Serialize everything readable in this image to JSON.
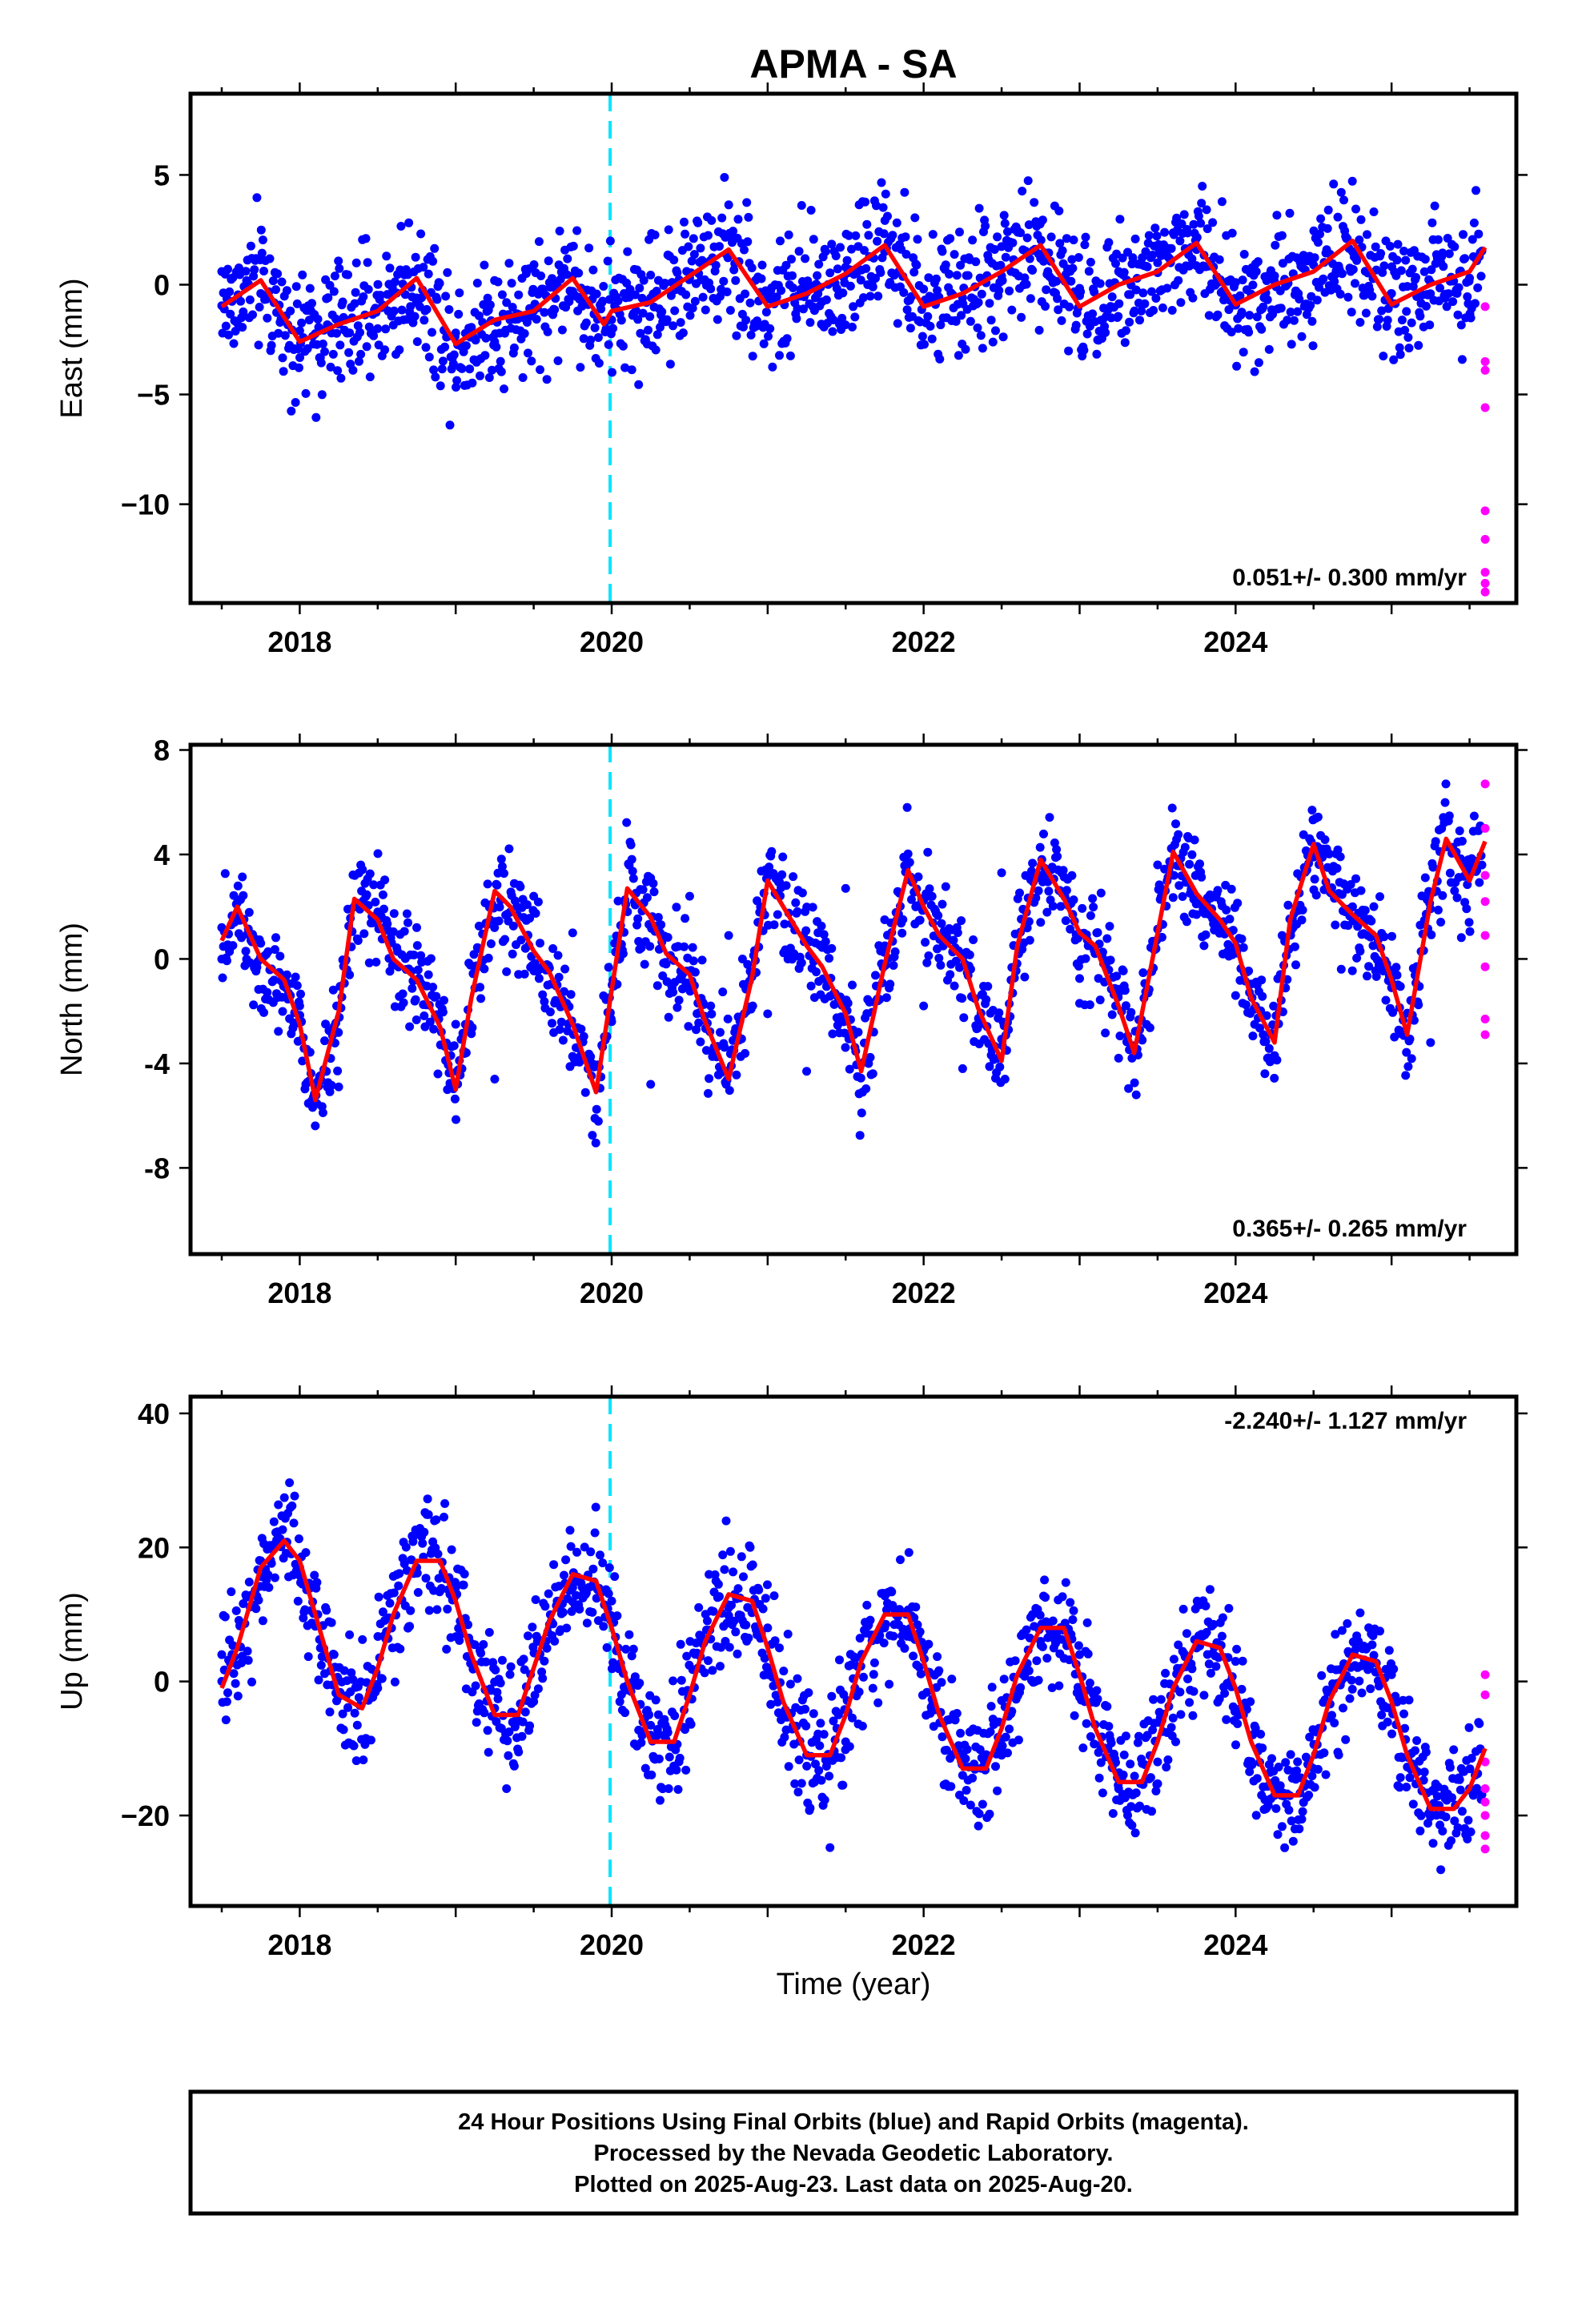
{
  "title": "APMA - SA",
  "xlabel": "Time (year)",
  "x_tick_labels": [
    "2018",
    "2020",
    "2022",
    "2024"
  ],
  "footer": {
    "line1": "24 Hour Positions Using Final Orbits (blue) and Rapid Orbits (magenta).",
    "line2": "Processed by the Nevada Geodetic Laboratory.",
    "line3": "Plotted on 2025-Aug-23. Last data on 2025-Aug-20."
  },
  "colors": {
    "final": "#0000ff",
    "rapid": "#ff00ff",
    "model": "#ff0000",
    "event": "#00e5ff",
    "frame": "#000000"
  },
  "chart_data": [
    {
      "type": "scatter",
      "component": "East",
      "ylabel": "East (mm)",
      "rate_label": "0.051+/- 0.300 mm/yr",
      "rate_position": "bottom-right",
      "xlim": [
        2017.3,
        2025.8
      ],
      "ylim": [
        -14.5,
        8.7
      ],
      "yticks": [
        5,
        0,
        -5,
        -10
      ],
      "ytick_labels": [
        "5",
        "0",
        "−5",
        "−10"
      ],
      "event_x": 2019.99,
      "grid": false,
      "final_orbits_x": [
        2017.5,
        2017.75,
        2018.0,
        2018.25,
        2018.5,
        2018.75,
        2019.0,
        2019.25,
        2019.5,
        2019.75,
        2020.0,
        2020.25,
        2020.5,
        2020.75,
        2021.0,
        2021.25,
        2021.5,
        2021.75,
        2022.0,
        2022.25,
        2022.5,
        2022.75,
        2023.0,
        2023.25,
        2023.5,
        2023.75,
        2024.0,
        2024.25,
        2024.5,
        2024.75,
        2025.0,
        2025.25,
        2025.5
      ],
      "final_orbits_y": [
        0.6,
        -0.4,
        -2.1,
        -1.8,
        -2.0,
        -0.6,
        -2.2,
        -2.6,
        -1.2,
        -0.3,
        -1.6,
        -0.6,
        0.3,
        1.4,
        -0.5,
        0.1,
        0.8,
        1.5,
        -0.2,
        -0.6,
        0.4,
        1.2,
        -0.5,
        0.6,
        1.0,
        1.6,
        0.1,
        0.4,
        0.9,
        1.5,
        -0.4,
        0.1,
        0.3
      ],
      "rapid_orbits_x": [
        2025.6,
        2025.6,
        2025.6,
        2025.6,
        2025.6,
        2025.6,
        2025.6,
        2025.6,
        2025.6
      ],
      "rapid_orbits_y": [
        -1.0,
        -3.5,
        -3.9,
        -5.6,
        -10.3,
        -11.6,
        -13.1,
        -13.6,
        -14.0
      ],
      "model_x": [
        2017.5,
        2017.75,
        2018.0,
        2018.25,
        2018.5,
        2018.75,
        2019.0,
        2019.25,
        2019.5,
        2019.75,
        2019.95,
        2020.0,
        2020.25,
        2020.5,
        2020.75,
        2021.0,
        2021.25,
        2021.5,
        2021.75,
        2022.0,
        2022.25,
        2022.5,
        2022.75,
        2023.0,
        2023.25,
        2023.5,
        2023.75,
        2024.0,
        2024.25,
        2024.5,
        2024.75,
        2025.0,
        2025.25,
        2025.5,
        2025.6
      ],
      "model_y": [
        -1.0,
        0.2,
        -2.6,
        -1.8,
        -1.2,
        0.3,
        -2.7,
        -1.6,
        -1.2,
        0.3,
        -1.8,
        -1.2,
        -0.8,
        0.4,
        1.6,
        -1.0,
        -0.4,
        0.5,
        1.8,
        -1.0,
        -0.4,
        0.6,
        1.8,
        -1.0,
        0.0,
        0.6,
        1.9,
        -0.9,
        0.0,
        0.6,
        2.0,
        -0.9,
        0.0,
        0.6,
        1.7
      ]
    },
    {
      "type": "scatter",
      "component": "North",
      "ylabel": "North (mm)",
      "rate_label": "0.365+/- 0.265 mm/yr",
      "rate_position": "bottom-right",
      "xlim": [
        2017.3,
        2025.8
      ],
      "ylim": [
        -11.3,
        8.2
      ],
      "yticks": [
        8,
        4,
        0,
        -4,
        -8
      ],
      "ytick_labels": [
        "8",
        "4",
        "0",
        "-4",
        "-8"
      ],
      "event_x": 2019.99,
      "grid": false,
      "final_orbits_x": [
        2017.5,
        2017.75,
        2018.0,
        2018.25,
        2018.5,
        2018.75,
        2019.0,
        2019.25,
        2019.5,
        2019.75,
        2020.0,
        2020.25,
        2020.5,
        2020.75,
        2021.0,
        2021.25,
        2021.5,
        2021.75,
        2022.0,
        2022.25,
        2022.5,
        2022.75,
        2023.0,
        2023.25,
        2023.5,
        2023.75,
        2024.0,
        2024.25,
        2024.5,
        2024.75,
        2025.0,
        2025.25,
        2025.5
      ],
      "final_orbits_y": [
        1.2,
        0.6,
        -1.8,
        -4.9,
        1.8,
        1.2,
        -2.5,
        -4.6,
        2.4,
        1.0,
        -2.4,
        -4.8,
        2.4,
        0.9,
        -2.1,
        -4.3,
        2.7,
        1.5,
        -1.8,
        -4.2,
        3.3,
        1.4,
        -1.7,
        -3.8,
        3.6,
        1.7,
        -1.4,
        -3.7,
        3.9,
        2.0,
        -1.1,
        -3.2,
        3.5
      ],
      "rapid_orbits_x": [
        2025.6,
        2025.6,
        2025.6,
        2025.6,
        2025.6,
        2025.6,
        2025.6,
        2025.6
      ],
      "rapid_orbits_y": [
        6.7,
        5.0,
        3.2,
        2.2,
        0.9,
        -0.3,
        -2.3,
        -2.9
      ],
      "model_x": [
        2017.5,
        2017.6,
        2017.75,
        2017.9,
        2018.0,
        2018.1,
        2018.25,
        2018.35,
        2018.5,
        2018.6,
        2018.75,
        2018.9,
        2019.0,
        2019.1,
        2019.25,
        2019.35,
        2019.5,
        2019.6,
        2019.75,
        2019.9,
        2020.0,
        2020.1,
        2020.25,
        2020.35,
        2020.5,
        2020.6,
        2020.75,
        2020.9,
        2021.0,
        2021.1,
        2021.25,
        2021.35,
        2021.5,
        2021.6,
        2021.75,
        2021.9,
        2022.0,
        2022.1,
        2022.25,
        2022.35,
        2022.5,
        2022.6,
        2022.75,
        2022.9,
        2023.0,
        2023.1,
        2023.25,
        2023.35,
        2023.5,
        2023.6,
        2023.75,
        2023.9,
        2024.0,
        2024.1,
        2024.25,
        2024.35,
        2024.5,
        2024.6,
        2024.75,
        2024.9,
        2025.0,
        2025.1,
        2025.25,
        2025.35,
        2025.5,
        2025.6
      ],
      "model_y": [
        0.7,
        2.0,
        0.0,
        -0.8,
        -2.5,
        -5.4,
        -2.0,
        2.3,
        1.5,
        0.0,
        -0.8,
        -2.6,
        -5.0,
        -1.5,
        2.6,
        2.0,
        0.3,
        -0.5,
        -2.5,
        -5.1,
        -1.2,
        2.7,
        1.6,
        0.2,
        -0.6,
        -2.4,
        -4.6,
        -0.7,
        3.0,
        2.0,
        0.5,
        -0.3,
        -2.1,
        -4.3,
        -0.2,
        3.4,
        2.0,
        0.9,
        0.0,
        -1.9,
        -3.9,
        0.5,
        3.8,
        2.3,
        1.0,
        0.5,
        -1.8,
        -3.6,
        1.0,
        4.1,
        2.5,
        1.5,
        0.6,
        -1.5,
        -3.2,
        1.5,
        4.4,
        2.6,
        1.7,
        0.9,
        -0.8,
        -2.9,
        2.2,
        4.6,
        3.0,
        4.5
      ]
    },
    {
      "type": "scatter",
      "component": "Up",
      "ylabel": "Up (mm)",
      "rate_label": "-2.240+/- 1.127 mm/yr",
      "rate_position": "top-right",
      "xlim": [
        2017.3,
        2025.8
      ],
      "ylim": [
        -33.5,
        42.5
      ],
      "yticks": [
        40,
        20,
        0,
        -20
      ],
      "ytick_labels": [
        "40",
        "20",
        "0",
        "−20"
      ],
      "event_x": 2019.99,
      "grid": false,
      "final_orbits_x": [
        2017.5,
        2017.75,
        2018.0,
        2018.25,
        2018.5,
        2018.75,
        2019.0,
        2019.25,
        2019.5,
        2019.75,
        2020.0,
        2020.25,
        2020.5,
        2020.75,
        2021.0,
        2021.25,
        2021.5,
        2021.75,
        2022.0,
        2022.25,
        2022.5,
        2022.75,
        2023.0,
        2023.25,
        2023.5,
        2023.75,
        2024.0,
        2024.25,
        2024.5,
        2024.75,
        2025.0,
        2025.25,
        2025.5
      ],
      "final_orbits_y": [
        4,
        18,
        17,
        -2,
        -1,
        17,
        14,
        -4,
        -3,
        14,
        12,
        -8,
        -6,
        11,
        8,
        -11,
        -9,
        8,
        5,
        -14,
        -11,
        6,
        4,
        -16,
        -12,
        5,
        3,
        -17,
        -13,
        4,
        1,
        -19,
        -16
      ],
      "rapid_orbits_x": [
        2025.6,
        2025.6,
        2025.6,
        2025.6,
        2025.6,
        2025.6,
        2025.6,
        2025.6
      ],
      "rapid_orbits_y": [
        1,
        -2,
        -12,
        -16,
        -18,
        -20,
        -23,
        -25
      ],
      "model_x": [
        2017.5,
        2017.6,
        2017.75,
        2017.9,
        2018.0,
        2018.1,
        2018.25,
        2018.4,
        2018.5,
        2018.6,
        2018.75,
        2018.9,
        2019.0,
        2019.1,
        2019.25,
        2019.4,
        2019.5,
        2019.6,
        2019.75,
        2019.9,
        2020.0,
        2020.1,
        2020.25,
        2020.4,
        2020.5,
        2020.6,
        2020.75,
        2020.9,
        2021.0,
        2021.1,
        2021.25,
        2021.4,
        2021.5,
        2021.6,
        2021.75,
        2021.9,
        2022.0,
        2022.1,
        2022.25,
        2022.4,
        2022.5,
        2022.6,
        2022.75,
        2022.9,
        2023.0,
        2023.1,
        2023.25,
        2023.4,
        2023.5,
        2023.6,
        2023.75,
        2023.9,
        2024.0,
        2024.1,
        2024.25,
        2024.4,
        2024.5,
        2024.6,
        2024.75,
        2024.9,
        2025.0,
        2025.1,
        2025.25,
        2025.4,
        2025.5,
        2025.6
      ],
      "model_y": [
        -1,
        5,
        17,
        21,
        18,
        10,
        -2,
        -4,
        2,
        10,
        18,
        18,
        12,
        4,
        -5,
        -5,
        2,
        9,
        16,
        15,
        8,
        0,
        -9,
        -9,
        -2,
        6,
        13,
        12,
        5,
        -3,
        -11,
        -11,
        -5,
        3,
        10,
        10,
        3,
        -5,
        -13,
        -13,
        -7,
        1,
        8,
        8,
        1,
        -7,
        -15,
        -15,
        -9,
        -1,
        6,
        5,
        -1,
        -9,
        -17,
        -17,
        -11,
        -3,
        4,
        3,
        -3,
        -11,
        -19,
        -19,
        -16,
        -10
      ]
    }
  ]
}
